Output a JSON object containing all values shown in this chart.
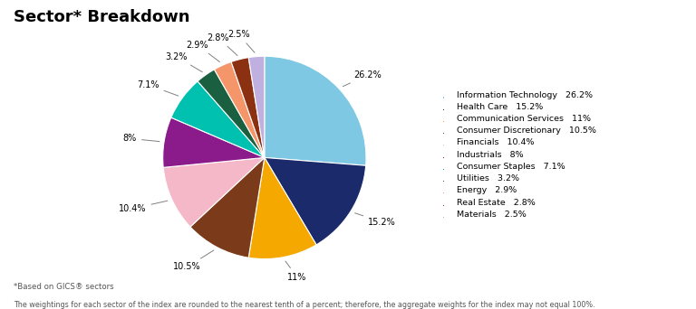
{
  "title": "Sector* Breakdown",
  "footnote1": "*Based on GICS® sectors",
  "footnote2": "The weightings for each sector of the index are rounded to the nearest tenth of a percent; therefore, the aggregate weights for the index may not equal 100%.",
  "sectors": [
    "Information Technology",
    "Health Care",
    "Communication Services",
    "Consumer Discretionary",
    "Financials",
    "Industrials",
    "Consumer Staples",
    "Utilities",
    "Energy",
    "Real Estate",
    "Materials"
  ],
  "values": [
    26.2,
    15.2,
    11.0,
    10.5,
    10.4,
    8.0,
    7.1,
    3.2,
    2.9,
    2.8,
    2.5
  ],
  "labels": [
    "26.2%",
    "15.2%",
    "11%",
    "10.5%",
    "10.4%",
    "8%",
    "7.1%",
    "3.2%",
    "2.9%",
    "2.8%",
    "2.5%"
  ],
  "colors": [
    "#7EC8E3",
    "#1B2A6B",
    "#F5A800",
    "#7B3A1A",
    "#F4B8C8",
    "#8B1A8B",
    "#00C0B0",
    "#1A6040",
    "#F4956A",
    "#8B3010",
    "#C0B0E0"
  ],
  "legend_labels": [
    "Information Technology   26.2%",
    "Health Care   15.2%",
    "Communication Services   11%",
    "Consumer Discretionary   10.5%",
    "Financials   10.4%",
    "Industrials   8%",
    "Consumer Staples   7.1%",
    "Utilities   3.2%",
    "Energy   2.9%",
    "Real Estate   2.8%",
    "Materials   2.5%"
  ],
  "background_color": "#FFFFFF"
}
